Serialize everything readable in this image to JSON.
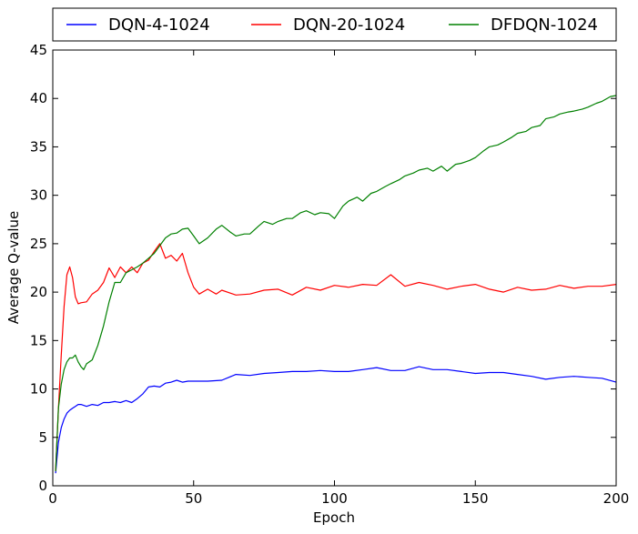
{
  "chart_data": {
    "type": "line",
    "title": "",
    "xlabel": "Epoch",
    "ylabel": "Average Q-value",
    "xlim": [
      0,
      200
    ],
    "ylim": [
      0,
      45
    ],
    "xticks": [
      0,
      50,
      100,
      150,
      200
    ],
    "yticks": [
      0,
      5,
      10,
      15,
      20,
      25,
      30,
      35,
      40,
      45
    ],
    "grid": false,
    "legend_position": "top",
    "series": [
      {
        "name": "DQN-4-1024",
        "color": "#0000ff",
        "x": [
          1,
          2,
          3,
          4,
          5,
          6,
          7,
          8,
          9,
          10,
          12,
          14,
          16,
          18,
          20,
          22,
          24,
          26,
          28,
          30,
          32,
          34,
          36,
          38,
          40,
          42,
          44,
          46,
          48,
          50,
          55,
          60,
          65,
          70,
          75,
          80,
          85,
          90,
          95,
          100,
          105,
          110,
          115,
          120,
          125,
          130,
          135,
          140,
          145,
          150,
          155,
          160,
          165,
          170,
          175,
          180,
          185,
          190,
          195,
          200
        ],
        "values": [
          1.3,
          4.5,
          6.0,
          6.9,
          7.5,
          7.8,
          8.0,
          8.2,
          8.4,
          8.4,
          8.2,
          8.4,
          8.3,
          8.6,
          8.6,
          8.7,
          8.6,
          8.8,
          8.6,
          9.0,
          9.5,
          10.2,
          10.3,
          10.2,
          10.6,
          10.7,
          10.9,
          10.7,
          10.8,
          10.8,
          10.8,
          10.9,
          11.5,
          11.4,
          11.6,
          11.7,
          11.8,
          11.8,
          11.9,
          11.8,
          11.8,
          12.0,
          12.2,
          11.9,
          11.9,
          12.3,
          12.0,
          12.0,
          11.8,
          11.6,
          11.7,
          11.7,
          11.5,
          11.3,
          11.0,
          11.2,
          11.3,
          11.2,
          11.1,
          10.7
        ]
      },
      {
        "name": "DQN-20-1024",
        "color": "#ff0000",
        "x": [
          1,
          2,
          3,
          4,
          5,
          6,
          7,
          8,
          9,
          10,
          12,
          14,
          16,
          18,
          20,
          22,
          24,
          26,
          28,
          30,
          32,
          34,
          36,
          38,
          40,
          42,
          44,
          46,
          48,
          50,
          52,
          55,
          58,
          60,
          65,
          70,
          75,
          80,
          85,
          90,
          95,
          100,
          105,
          110,
          115,
          120,
          125,
          130,
          135,
          140,
          145,
          150,
          155,
          160,
          165,
          170,
          175,
          180,
          185,
          190,
          195,
          200
        ],
        "values": [
          1.5,
          8.0,
          13.5,
          18.5,
          21.8,
          22.6,
          21.5,
          19.5,
          18.8,
          18.9,
          19.0,
          19.8,
          20.2,
          21.0,
          22.5,
          21.5,
          22.6,
          22.0,
          22.6,
          22.0,
          23.0,
          23.3,
          24.2,
          25.0,
          23.5,
          23.8,
          23.2,
          24.0,
          22.0,
          20.5,
          19.8,
          20.3,
          19.8,
          20.2,
          19.7,
          19.8,
          20.2,
          20.3,
          19.7,
          20.5,
          20.2,
          20.7,
          20.5,
          20.8,
          20.7,
          21.8,
          20.6,
          21.0,
          20.7,
          20.3,
          20.6,
          20.8,
          20.3,
          20.0,
          20.5,
          20.2,
          20.3,
          20.7,
          20.4,
          20.6,
          20.6,
          20.8
        ]
      },
      {
        "name": "DFDQN-1024",
        "color": "#008000",
        "x": [
          1,
          2,
          3,
          4,
          5,
          6,
          7,
          8,
          9,
          10,
          11,
          12,
          14,
          16,
          18,
          20,
          22,
          24,
          26,
          28,
          30,
          32,
          34,
          36,
          38,
          40,
          42,
          44,
          46,
          48,
          50,
          52,
          55,
          58,
          60,
          63,
          65,
          68,
          70,
          73,
          75,
          78,
          80,
          83,
          85,
          88,
          90,
          93,
          95,
          98,
          100,
          103,
          105,
          108,
          110,
          113,
          115,
          118,
          120,
          123,
          125,
          128,
          130,
          133,
          135,
          138,
          140,
          143,
          145,
          148,
          150,
          153,
          155,
          158,
          160,
          163,
          165,
          168,
          170,
          173,
          175,
          178,
          180,
          183,
          185,
          188,
          190,
          193,
          195,
          198,
          200
        ],
        "values": [
          1.5,
          8.0,
          10.5,
          12.0,
          12.8,
          13.2,
          13.2,
          13.5,
          12.8,
          12.3,
          12.0,
          12.6,
          13.0,
          14.5,
          16.5,
          19.0,
          21.0,
          21.0,
          22.0,
          22.3,
          22.6,
          23.0,
          23.5,
          24.0,
          24.8,
          25.6,
          26.0,
          26.1,
          26.5,
          26.6,
          25.8,
          25.0,
          25.6,
          26.5,
          26.9,
          26.2,
          25.8,
          26.0,
          26.0,
          26.8,
          27.3,
          27.0,
          27.3,
          27.6,
          27.6,
          28.2,
          28.4,
          28.0,
          28.2,
          28.1,
          27.6,
          28.9,
          29.4,
          29.8,
          29.4,
          30.2,
          30.4,
          30.9,
          31.2,
          31.6,
          32.0,
          32.3,
          32.6,
          32.8,
          32.5,
          33.0,
          32.5,
          33.2,
          33.3,
          33.6,
          33.9,
          34.6,
          35.0,
          35.2,
          35.5,
          36.0,
          36.4,
          36.6,
          37.0,
          37.2,
          37.9,
          38.1,
          38.4,
          38.6,
          38.7,
          38.9,
          39.1,
          39.5,
          39.7,
          40.2,
          40.3
        ]
      }
    ]
  }
}
